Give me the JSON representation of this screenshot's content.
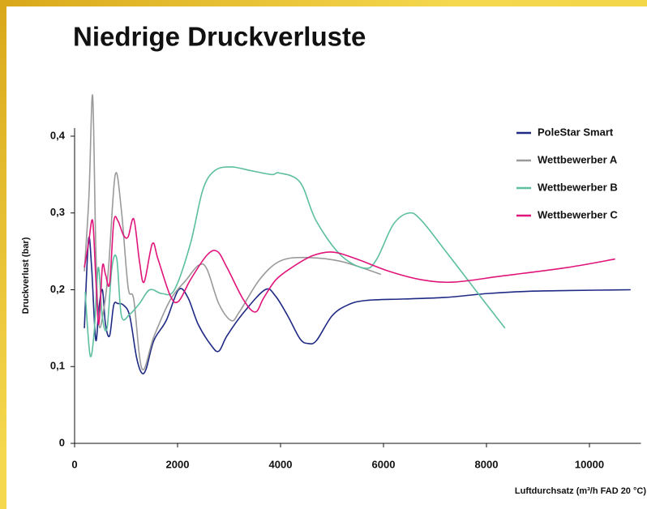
{
  "chart_data": {
    "type": "line",
    "title": "Niedrige Druckverluste",
    "xlabel": "Luftdurchsatz (m³/h FAD 20 °C)",
    "ylabel": "Druckverlust (bar)",
    "xlim": [
      0,
      11000
    ],
    "ylim": [
      0,
      0.45
    ],
    "xticks": [
      0,
      2000,
      4000,
      6000,
      8000,
      10000
    ],
    "yticks": [
      0,
      {
        "value": 0.1,
        "label": "0,1"
      },
      {
        "value": 0.2,
        "label": "0,2"
      },
      {
        "value": 0.3,
        "label": "0,3"
      },
      {
        "value": 0.4,
        "label": "0,4"
      }
    ],
    "legend": "upper right",
    "series": [
      {
        "name": "PoleStar Smart",
        "color": "#1f2a85",
        "x": [
          190,
          270,
          330,
          410,
          470,
          540,
          600,
          680,
          760,
          840,
          950,
          1070,
          1200,
          1300,
          1390,
          1540,
          1780,
          2020,
          2200,
          2400,
          2650,
          2800,
          2960,
          3280,
          3700,
          3900,
          4140,
          4380,
          4540,
          4700,
          5000,
          5300,
          5650,
          6400,
          7200,
          8000,
          8800,
          9600,
          10800
        ],
        "values": [
          0.15,
          0.265,
          0.23,
          0.135,
          0.175,
          0.2,
          0.155,
          0.14,
          0.18,
          0.182,
          0.18,
          0.166,
          0.113,
          0.092,
          0.097,
          0.134,
          0.16,
          0.2,
          0.19,
          0.155,
          0.128,
          0.12,
          0.14,
          0.17,
          0.2,
          0.192,
          0.166,
          0.136,
          0.13,
          0.134,
          0.166,
          0.18,
          0.186,
          0.188,
          0.19,
          0.195,
          0.198,
          0.199,
          0.2
        ]
      },
      {
        "name": "Wettbewerber A",
        "color": "#9a9a9a",
        "x": [
          190,
          280,
          350,
          410,
          470,
          570,
          660,
          790,
          910,
          1040,
          1150,
          1310,
          1540,
          1860,
          2170,
          2410,
          2570,
          2800,
          3040,
          3200,
          3590,
          3980,
          4460,
          5170,
          5950
        ],
        "values": [
          0.224,
          0.324,
          0.453,
          0.26,
          0.155,
          0.176,
          0.229,
          0.35,
          0.303,
          0.203,
          0.187,
          0.097,
          0.139,
          0.187,
          0.213,
          0.232,
          0.227,
          0.182,
          0.16,
          0.171,
          0.213,
          0.237,
          0.242,
          0.237,
          0.22
        ]
      },
      {
        "name": "Wettbewerber B",
        "color": "#5cbf9f",
        "x": [
          205,
          300,
          380,
          460,
          535,
          630,
          725,
          820,
          910,
          1070,
          1260,
          1460,
          1700,
          1940,
          2250,
          2490,
          2720,
          3040,
          3430,
          3830,
          3980,
          4380,
          4690,
          5170,
          5640,
          5870,
          6190,
          6500,
          6740,
          7210,
          7840,
          8360
        ],
        "values": [
          0.197,
          0.115,
          0.145,
          0.229,
          0.166,
          0.15,
          0.229,
          0.24,
          0.166,
          0.168,
          0.182,
          0.2,
          0.195,
          0.2,
          0.26,
          0.33,
          0.355,
          0.36,
          0.355,
          0.35,
          0.352,
          0.34,
          0.29,
          0.245,
          0.228,
          0.24,
          0.285,
          0.3,
          0.29,
          0.25,
          0.195,
          0.15
        ]
      },
      {
        "name": "Wettbewerber C",
        "color": "#e0147a",
        "x": [
          190,
          270,
          350,
          410,
          470,
          540,
          600,
          680,
          760,
          840,
          950,
          1040,
          1150,
          1260,
          1350,
          1510,
          1620,
          1860,
          2020,
          2250,
          2570,
          2770,
          2960,
          3280,
          3510,
          3670,
          3910,
          4220,
          4610,
          5010,
          5480,
          6110,
          6740,
          7370,
          8310,
          9570,
          10500
        ],
        "values": [
          0.229,
          0.26,
          0.29,
          0.218,
          0.155,
          0.23,
          0.22,
          0.208,
          0.288,
          0.29,
          0.271,
          0.269,
          0.292,
          0.237,
          0.21,
          0.26,
          0.24,
          0.192,
          0.185,
          0.213,
          0.245,
          0.25,
          0.229,
          0.187,
          0.171,
          0.189,
          0.213,
          0.229,
          0.244,
          0.249,
          0.24,
          0.224,
          0.213,
          0.21,
          0.218,
          0.229,
          0.24
        ]
      }
    ]
  }
}
